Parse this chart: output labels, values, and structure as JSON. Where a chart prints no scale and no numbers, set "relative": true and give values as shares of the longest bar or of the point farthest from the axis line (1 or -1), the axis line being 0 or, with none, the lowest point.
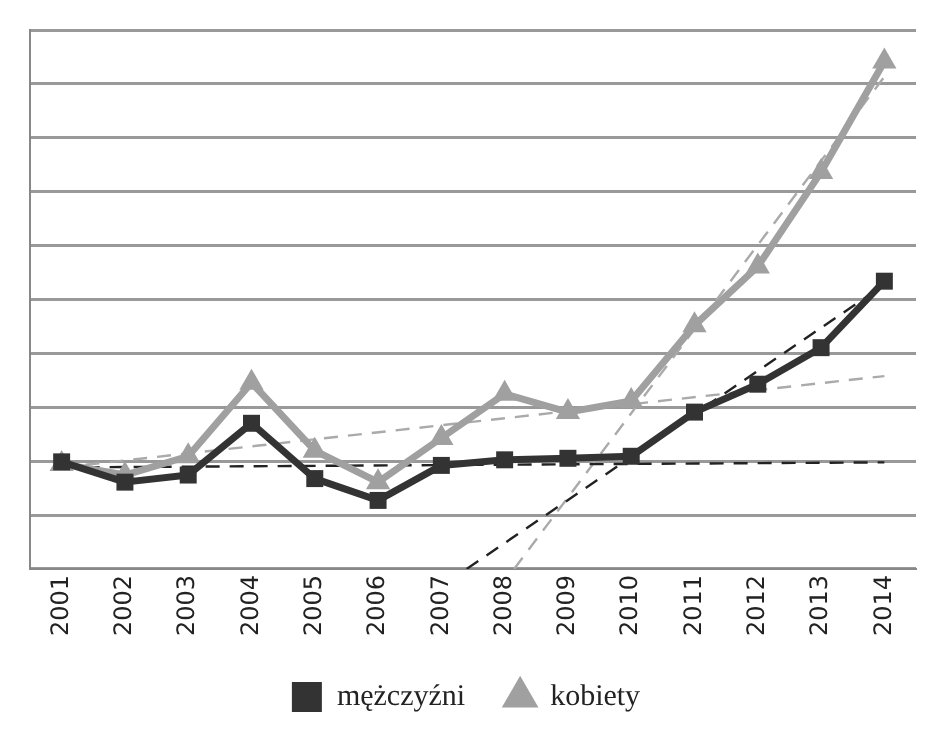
{
  "chart_data": {
    "type": "line",
    "relative": true,
    "x": [
      2001,
      2002,
      2003,
      2004,
      2005,
      2006,
      2007,
      2008,
      2009,
      2010,
      2011,
      2012,
      2013,
      2014
    ],
    "xlim": [
      2000.5,
      2014.5
    ],
    "xticks": [
      2001,
      2002,
      2003,
      2004,
      2005,
      2006,
      2007,
      2008,
      2009,
      2010,
      2011,
      2012,
      2013,
      2014
    ],
    "grid": "y",
    "legend": "bottom",
    "series": [
      {
        "name": "mężczyźni",
        "color": "#333333",
        "marker": "square",
        "line_style": "solid",
        "values": [
          0.211,
          0.171,
          0.185,
          0.287,
          0.178,
          0.135,
          0.204,
          0.215,
          0.218,
          0.222,
          0.309,
          0.364,
          0.436,
          0.567
        ]
      },
      {
        "name": "kobiety",
        "color": "#a0a0a0",
        "marker": "triangle",
        "line_style": "solid",
        "values": [
          0.207,
          0.185,
          0.222,
          0.367,
          0.233,
          0.171,
          0.258,
          0.345,
          0.309,
          0.331,
          0.48,
          0.596,
          0.782,
          1
        ]
      },
      {
        "type": "line",
        "color": "#222222",
        "marker": "none",
        "line_style": "dashed",
        "x": [
          2001,
          2014
        ],
        "values": [
          0.2,
          0.21
        ]
      },
      {
        "type": "line",
        "color": "#aaaaaa",
        "marker": "none",
        "line_style": "dashed",
        "x": [
          2001,
          2014
        ],
        "values": [
          0.2,
          0.38
        ]
      },
      {
        "type": "line",
        "color": "#222222",
        "marker": "none",
        "line_style": "dashed",
        "x": [
          2007.4,
          2014
        ],
        "values": [
          0,
          0.56
        ]
      },
      {
        "type": "line",
        "color": "#aaaaaa",
        "marker": "none",
        "line_style": "dashed",
        "x": [
          2008.15,
          2014
        ],
        "values": [
          0,
          0.97
        ]
      }
    ]
  }
}
